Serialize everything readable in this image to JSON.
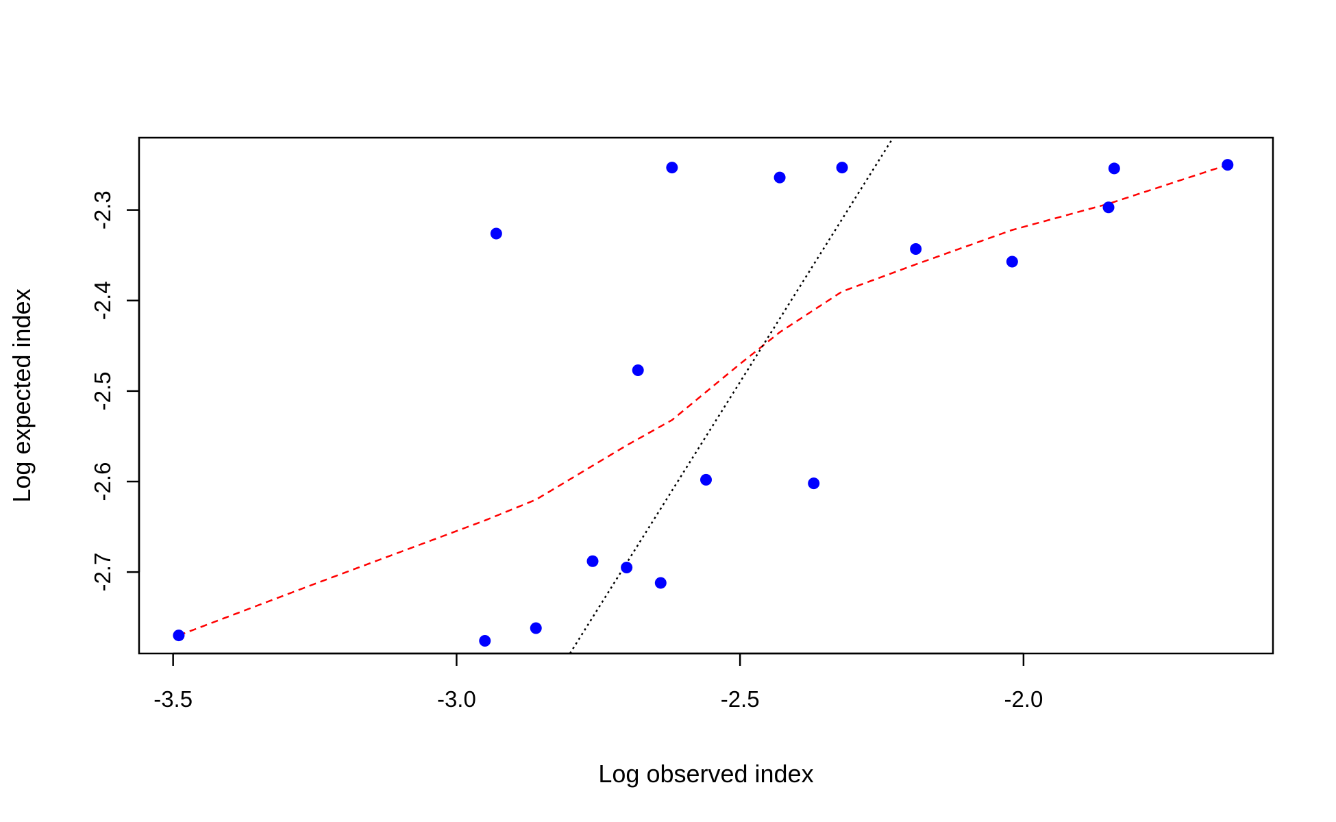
{
  "chart_data": {
    "type": "scatter",
    "title": "",
    "xlabel": "Log observed index",
    "ylabel": "Log expected index",
    "xlim": [
      -3.56,
      -1.56
    ],
    "ylim": [
      -2.79,
      -2.22
    ],
    "x_ticks": [
      -3.5,
      -3.0,
      -2.5,
      -2.0
    ],
    "x_tick_labels": [
      "-3.5",
      "-3.0",
      "-2.5",
      "-2.0"
    ],
    "y_ticks": [
      -2.7,
      -2.6,
      -2.5,
      -2.4,
      -2.3
    ],
    "y_tick_labels": [
      "-2.7",
      "-2.6",
      "-2.5",
      "-2.4",
      "-2.3"
    ],
    "grid": false,
    "legend": "none",
    "colors": {
      "points": "#0000ff",
      "smooth": "#ff0000",
      "reference": "#000000"
    },
    "points": {
      "x": [
        -3.49,
        -2.95,
        -2.93,
        -2.86,
        -2.76,
        -2.7,
        -2.68,
        -2.64,
        -2.62,
        -2.56,
        -2.43,
        -2.37,
        -2.32,
        -2.19,
        -2.02,
        -1.85,
        -1.84,
        -1.64
      ],
      "y": [
        -2.77,
        -2.776,
        -2.326,
        -2.762,
        -2.688,
        -2.695,
        -2.477,
        -2.712,
        -2.253,
        -2.598,
        -2.264,
        -2.602,
        -2.253,
        -2.343,
        -2.357,
        -2.297,
        -2.254,
        -2.25
      ]
    },
    "smooth_line": {
      "style": "dashed",
      "x": [
        -3.49,
        -3.25,
        -2.95,
        -2.86,
        -2.7,
        -2.62,
        -2.5,
        -2.43,
        -2.32,
        -2.19,
        -2.02,
        -1.85,
        -1.64
      ],
      "y": [
        -2.77,
        -2.713,
        -2.643,
        -2.62,
        -2.56,
        -2.532,
        -2.47,
        -2.435,
        -2.39,
        -2.36,
        -2.322,
        -2.293,
        -2.25
      ]
    },
    "reference_line": {
      "style": "dotted",
      "x": [
        -2.8,
        -2.23
      ],
      "y": [
        -2.79,
        -2.22
      ]
    }
  }
}
